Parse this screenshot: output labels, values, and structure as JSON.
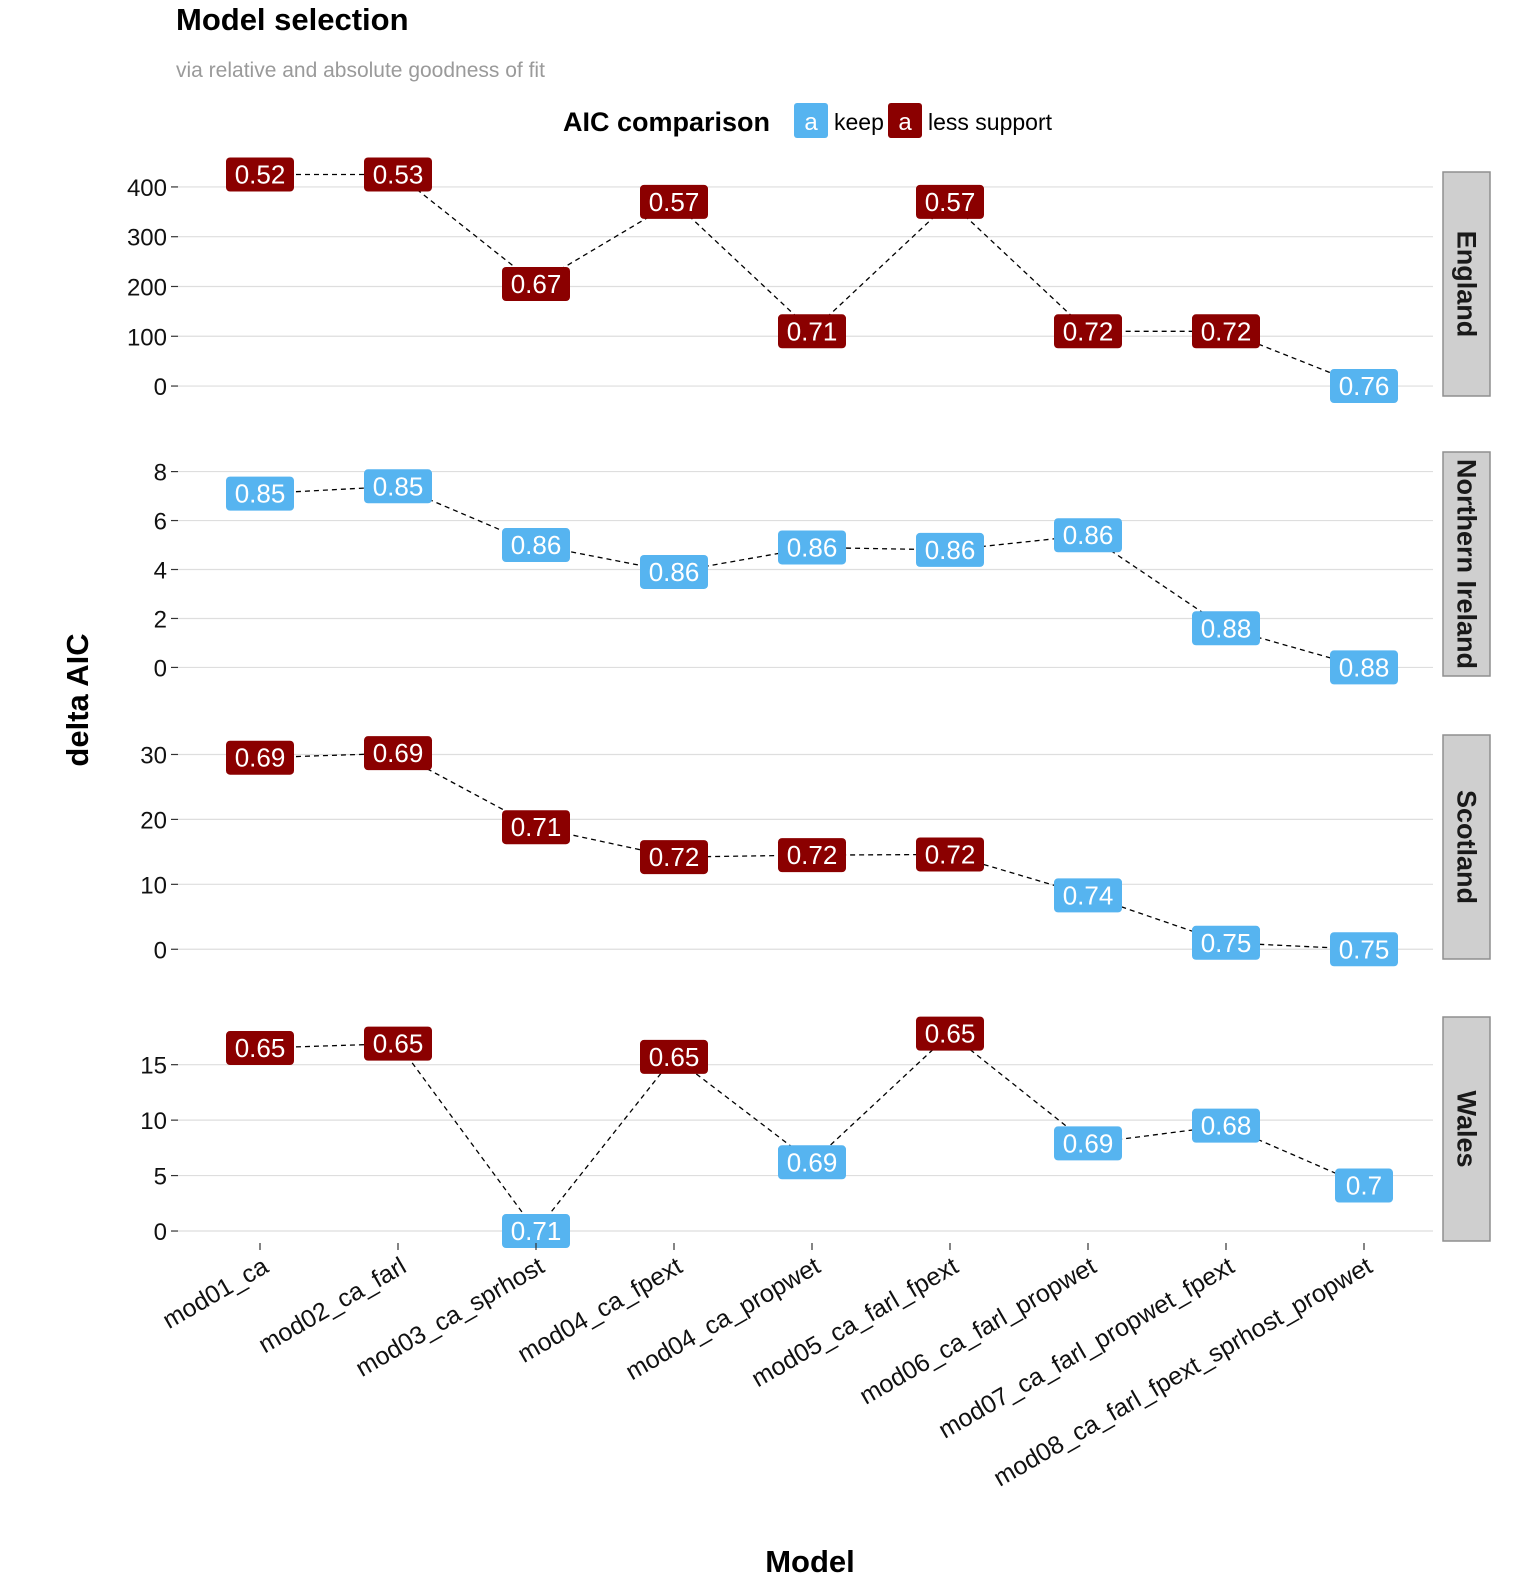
{
  "chart_data": {
    "type": "line",
    "title": "Model selection",
    "subtitle": "via relative and absolute goodness of fit",
    "xlabel": "Model",
    "ylabel": "delta AIC",
    "legend": {
      "title": "AIC comparison",
      "position": "top",
      "key_glyph": "a",
      "entries": [
        {
          "name": "keep",
          "color": "#56B4F0"
        },
        {
          "name": "less support",
          "color": "#8B0000"
        }
      ]
    },
    "categories": [
      "mod01_ca",
      "mod02_ca_farl",
      "mod03_ca_sprhost",
      "mod04_ca_fpext",
      "mod04_ca_propwet",
      "mod05_ca_farl_fpext",
      "mod06_ca_farl_propwet",
      "mod07_ca_farl_propwet_fpext",
      "mod08_ca_farl_fpext_sprhost_propwet"
    ],
    "grid": true,
    "panels": [
      {
        "name": "England",
        "yticks": [
          0,
          100,
          200,
          300,
          400
        ],
        "ylim": [
          -20,
          430
        ],
        "values": [
          425,
          425,
          205,
          370,
          110,
          370,
          110,
          110,
          0
        ],
        "labels": [
          "0.52",
          "0.53",
          "0.67",
          "0.57",
          "0.71",
          "0.57",
          "0.72",
          "0.72",
          "0.76"
        ],
        "groups": [
          "less support",
          "less support",
          "less support",
          "less support",
          "less support",
          "less support",
          "less support",
          "less support",
          "keep"
        ]
      },
      {
        "name": "Northern Ireland",
        "yticks": [
          0,
          2,
          4,
          6,
          8
        ],
        "ylim": [
          -0.35,
          8.8
        ],
        "values": [
          7.1,
          7.4,
          5.0,
          3.9,
          4.9,
          4.8,
          5.4,
          1.6,
          0
        ],
        "labels": [
          "0.85",
          "0.85",
          "0.86",
          "0.86",
          "0.86",
          "0.86",
          "0.86",
          "0.88",
          "0.88"
        ],
        "groups": [
          "keep",
          "keep",
          "keep",
          "keep",
          "keep",
          "keep",
          "keep",
          "keep",
          "keep"
        ]
      },
      {
        "name": "Scotland",
        "yticks": [
          0,
          10,
          20,
          30
        ],
        "ylim": [
          -1.5,
          33
        ],
        "values": [
          29.5,
          30.2,
          18.8,
          14.2,
          14.5,
          14.6,
          8.3,
          1.0,
          0
        ],
        "labels": [
          "0.69",
          "0.69",
          "0.71",
          "0.72",
          "0.72",
          "0.72",
          "0.74",
          "0.75",
          "0.75"
        ],
        "groups": [
          "less support",
          "less support",
          "less support",
          "less support",
          "less support",
          "less support",
          "keep",
          "keep",
          "keep"
        ]
      },
      {
        "name": "Wales",
        "yticks": [
          0,
          5,
          10,
          15
        ],
        "ylim": [
          -0.9,
          19.3
        ],
        "values": [
          16.5,
          16.9,
          0,
          15.7,
          6.2,
          17.8,
          7.9,
          9.5,
          4.1
        ],
        "labels": [
          "0.65",
          "0.65",
          "0.71",
          "0.65",
          "0.69",
          "0.65",
          "0.69",
          "0.68",
          "0.7"
        ],
        "groups": [
          "less support",
          "less support",
          "keep",
          "less support",
          "keep",
          "less support",
          "keep",
          "keep",
          "keep"
        ]
      }
    ]
  }
}
